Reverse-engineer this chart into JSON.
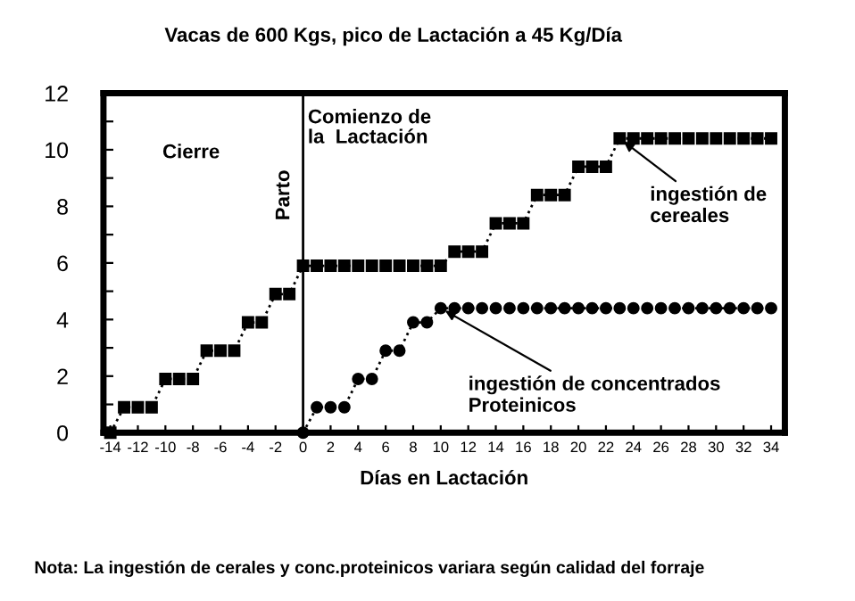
{
  "chart_data": {
    "type": "line",
    "title": "Vacas de 600 Kgs, pico de Lactación a 45 Kg/Día",
    "xlabel": "Días en Lactación",
    "series": [
      {
        "x": [
          -14,
          -13,
          -12,
          -11,
          -10,
          -9,
          -8,
          -7,
          -6,
          -5,
          -4,
          -3,
          -2,
          -1,
          0,
          1,
          2,
          3,
          4,
          5,
          6,
          7,
          8,
          9,
          10,
          11,
          12,
          13,
          14,
          15,
          16,
          17,
          18,
          19,
          20,
          21,
          22,
          23,
          24,
          25,
          26,
          27,
          28,
          29,
          30,
          31,
          32,
          33,
          34
        ],
        "values": [
          0,
          0.9,
          0.9,
          0.9,
          1.9,
          1.9,
          1.9,
          2.9,
          2.9,
          2.9,
          3.9,
          3.9,
          4.9,
          4.9,
          5.9,
          5.9,
          5.9,
          5.9,
          5.9,
          5.9,
          5.9,
          5.9,
          5.9,
          5.9,
          5.9,
          6.4,
          6.4,
          6.4,
          7.4,
          7.4,
          7.4,
          8.4,
          8.4,
          8.4,
          9.4,
          9.4,
          9.4,
          10.4,
          10.4,
          10.4,
          10.4,
          10.4,
          10.4,
          10.4,
          10.4,
          10.4,
          10.4,
          10.4,
          10.4
        ],
        "color": "#000000",
        "marker": "square"
      },
      {
        "x": [
          0,
          1,
          2,
          3,
          4,
          5,
          6,
          7,
          8,
          9,
          10,
          11,
          12,
          13,
          14,
          15,
          16,
          17,
          18,
          19,
          20,
          21,
          22,
          23,
          24,
          25,
          26,
          27,
          28,
          29,
          30,
          31,
          32,
          33,
          34
        ],
        "values": [
          0,
          0.9,
          0.9,
          0.9,
          1.9,
          1.9,
          2.9,
          2.9,
          3.9,
          3.9,
          4.4,
          4.4,
          4.4,
          4.4,
          4.4,
          4.4,
          4.4,
          4.4,
          4.4,
          4.4,
          4.4,
          4.4,
          4.4,
          4.4,
          4.4,
          4.4,
          4.4,
          4.4,
          4.4,
          4.4,
          4.4,
          4.4,
          4.4,
          4.4,
          4.4
        ],
        "color": "#000000",
        "marker": "circle"
      }
    ],
    "line_style": "dotted",
    "xlim": [
      -14.5,
      35
    ],
    "ylim": [
      0,
      12
    ],
    "xticks": [
      -14,
      -12,
      -10,
      -8,
      -6,
      -4,
      -2,
      0,
      2,
      4,
      6,
      8,
      10,
      12,
      14,
      16,
      18,
      20,
      22,
      24,
      26,
      28,
      30,
      32,
      34
    ],
    "yticks": [
      0,
      {
        "value": 1,
        "label": null
      },
      2,
      {
        "value": 3,
        "label": null
      },
      4,
      {
        "value": 5,
        "label": null
      },
      6,
      {
        "value": 7,
        "label": null
      },
      8,
      {
        "value": 9,
        "label": null
      },
      10,
      {
        "value": 11,
        "label": null
      },
      12
    ],
    "ref_lines": [
      {
        "axis": "x",
        "value": 0,
        "label": "Parto",
        "color": "#000000"
      }
    ],
    "grid": false,
    "legend": false,
    "annotations": [
      "Cierre",
      "Comienzo de\nla  Lactación",
      {
        "text": "ingestión de\ncereales",
        "x": 23,
        "y": 10.4
      },
      {
        "text": "ingestión de concentrados\nProteinicos",
        "x": 10,
        "y": 4.4
      },
      "Nota: La ingestión de cerales y conc.proteinicos variara según calidad del forraje"
    ]
  }
}
